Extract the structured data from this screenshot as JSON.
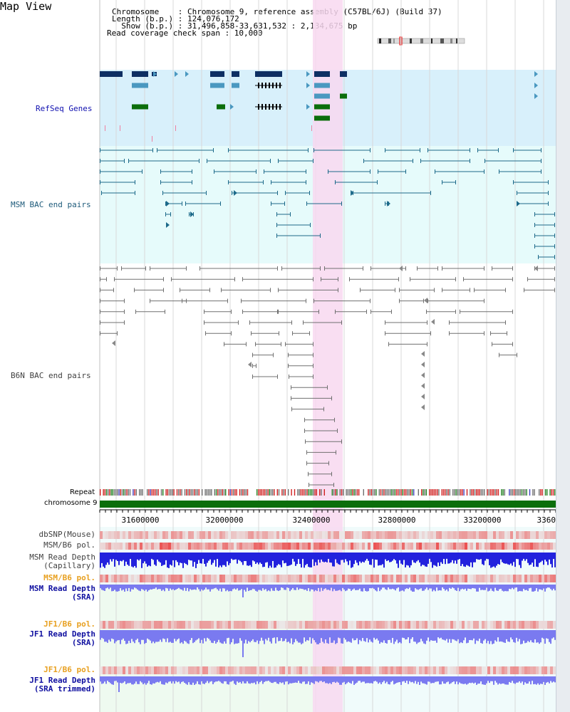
{
  "title": "Map View",
  "header": {
    "line1": "Chromosome    : Chromosome 9, reference assembly (C57BL/6J) (Build 37)",
    "line2": "Length (b.p.) : 124,076,172",
    "line3": "  Show (b.p.) : 31,496,858-33,631,532 : 2,134,675 bp",
    "line4": "Read coverage check span : 10,000"
  },
  "colors": {
    "refseq_bg": "#d8f0fb",
    "msm_bg": "#e6fbfb",
    "highlight": "#f8d8f0",
    "refseq_dark": "#0e2f63",
    "refseq_mid": "#4a98c0",
    "refseq_green": "#0b6e0b",
    "msm_line": "#1d6a8a",
    "b6n_line": "#707070",
    "chrom_bar": "#0b6e0b",
    "depth_blue": "#2222dd",
    "sra_blue": "#7a7af0"
  },
  "tracks": {
    "refseq_label": "RefSeq Genes",
    "msm_bac_label": "MSM BAC end pairs",
    "b6n_bac_label": "B6N BAC end pairs",
    "repeat_label": "Repeat",
    "chromosome_label": "chromosome 9"
  },
  "axis": {
    "ticks": [
      "31600000",
      "32000000",
      "32400000",
      "32800000",
      "33200000",
      "3360"
    ]
  },
  "lower_tracks": [
    {
      "key": "dbsnp",
      "label": "dbSNP(Mouse)",
      "color": "#404040"
    },
    {
      "key": "msm_b6_pol_1",
      "label": "MSM/B6 pol.",
      "color": "#404040"
    },
    {
      "key": "msm_depth_cap",
      "label": "MSM Read Depth\n(Capillary)",
      "color": "#404040"
    },
    {
      "key": "msm_b6_pol_2",
      "label": "MSM/B6 pol.",
      "color": "#e8a020"
    },
    {
      "key": "msm_depth_sra",
      "label": "MSM Read Depth\n(SRA)",
      "color": "#1010a0"
    },
    {
      "key": "jf1_b6_pol_1",
      "label": "JF1/B6 pol.",
      "color": "#e8a020"
    },
    {
      "key": "jf1_depth_sra",
      "label": "JF1 Read Depth\n(SRA)",
      "color": "#1010a0"
    },
    {
      "key": "jf1_b6_pol_2",
      "label": "JF1/B6 pol.",
      "color": "#e8a020"
    },
    {
      "key": "jf1_depth_trim",
      "label": "JF1 Read Depth\n(SRA trimmed)",
      "color": "#1010a0"
    }
  ]
}
